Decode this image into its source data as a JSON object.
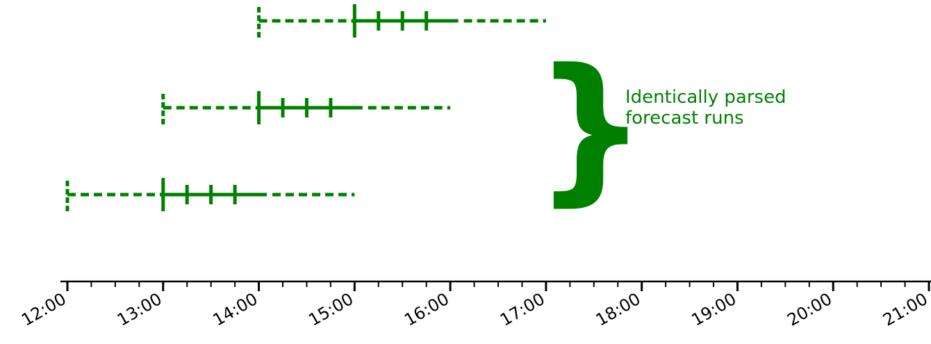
{
  "chart_data": {
    "type": "timeline",
    "x_axis": {
      "range": [
        "12:00",
        "21:00"
      ],
      "major_ticks": [
        "12:00",
        "13:00",
        "14:00",
        "15:00",
        "16:00",
        "17:00",
        "18:00",
        "19:00",
        "20:00",
        "21:00"
      ],
      "minor_tick_interval_minutes": 15
    },
    "runs": [
      {
        "issue_time": "14:00",
        "dashed_before": [
          "14:00",
          "15:00"
        ],
        "solid": [
          "15:00",
          "16:05"
        ],
        "dashed_after": [
          "16:05",
          "17:00"
        ],
        "ticks": [
          "15:00",
          "15:15",
          "15:30",
          "15:45"
        ]
      },
      {
        "issue_time": "13:00",
        "dashed_before": [
          "13:00",
          "14:00"
        ],
        "solid": [
          "14:00",
          "15:05"
        ],
        "dashed_after": [
          "15:05",
          "16:00"
        ],
        "ticks": [
          "14:00",
          "14:15",
          "14:30",
          "14:45"
        ]
      },
      {
        "issue_time": "12:00",
        "dashed_before": [
          "12:00",
          "13:00"
        ],
        "solid": [
          "13:00",
          "14:05"
        ],
        "dashed_after": [
          "14:05",
          "15:00"
        ],
        "ticks": [
          "13:00",
          "13:15",
          "13:30",
          "13:45"
        ]
      }
    ],
    "annotation": {
      "symbol": "}",
      "lines": [
        "Identically parsed",
        "forecast runs"
      ]
    },
    "colors": {
      "runs": "#008000",
      "axis": "#000000"
    }
  }
}
